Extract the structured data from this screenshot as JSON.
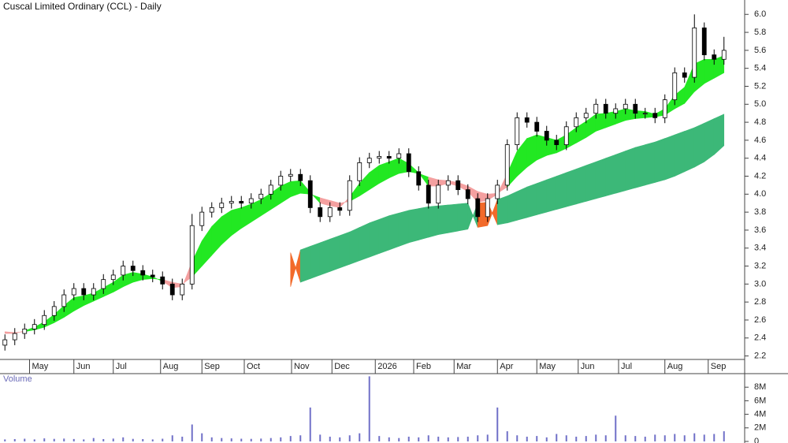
{
  "chart_data": [
    {
      "type": "candlestick",
      "title": "Cuscal Limited Ordinary (CCL) - Daily",
      "xlim": [
        -0.5,
        75.1
      ],
      "xticks": [
        {
          "value": 2.5,
          "label": "May"
        },
        {
          "value": 7.0,
          "label": "Jun"
        },
        {
          "value": 11.0,
          "label": "Jul"
        },
        {
          "value": 15.8,
          "label": "Aug"
        },
        {
          "value": 20.0,
          "label": "Sep"
        },
        {
          "value": 24.3,
          "label": "Oct"
        },
        {
          "value": 29.1,
          "label": "Nov"
        },
        {
          "value": 33.2,
          "label": "Dec"
        },
        {
          "value": 37.6,
          "label": "2026"
        },
        {
          "value": 41.5,
          "label": "Feb"
        },
        {
          "value": 45.6,
          "label": "Mar"
        },
        {
          "value": 50.0,
          "label": "Apr"
        },
        {
          "value": 54.0,
          "label": "May"
        },
        {
          "value": 58.2,
          "label": "Jun"
        },
        {
          "value": 62.3,
          "label": "Jul"
        },
        {
          "value": 67.0,
          "label": "Aug"
        },
        {
          "value": 71.4,
          "label": "Sep"
        }
      ],
      "ylim": [
        2.17,
        6.16
      ],
      "yticks": [
        2.2,
        2.4,
        2.6,
        2.8,
        {
          "value": 3.0,
          "label": "3.0"
        },
        3.2,
        3.4,
        3.6,
        3.8,
        {
          "value": 4.0,
          "label": "4.0"
        },
        4.2,
        4.4,
        4.6,
        4.8,
        {
          "value": 5.0,
          "label": "5.0"
        },
        5.2,
        5.4,
        5.6,
        5.8,
        {
          "value": 6.0,
          "label": "6.0"
        }
      ],
      "open": [
        2.32,
        2.38,
        2.45,
        2.5,
        2.55,
        2.65,
        2.75,
        2.88,
        2.95,
        2.88,
        2.95,
        3.05,
        3.1,
        3.2,
        3.15,
        3.1,
        3.08,
        3.0,
        2.88,
        3.0,
        3.65,
        3.8,
        3.85,
        3.9,
        3.92,
        3.9,
        3.95,
        4.0,
        4.1,
        4.2,
        4.22,
        4.15,
        3.85,
        3.75,
        3.85,
        3.82,
        4.15,
        4.35,
        4.4,
        4.42,
        4.4,
        4.45,
        4.25,
        4.1,
        3.9,
        4.1,
        4.15,
        4.05,
        3.95,
        3.75,
        3.95,
        4.1,
        4.55,
        4.85,
        4.8,
        4.7,
        4.6,
        4.55,
        4.75,
        4.85,
        4.9,
        5.0,
        4.9,
        4.95,
        5.0,
        4.9,
        4.9,
        4.85,
        5.05,
        5.35,
        5.3,
        5.85,
        5.55,
        5.5
      ],
      "high": [
        2.44,
        2.51,
        2.56,
        2.61,
        2.71,
        2.81,
        2.94,
        3.01,
        3.01,
        3.01,
        3.11,
        3.16,
        3.26,
        3.26,
        3.21,
        3.16,
        3.14,
        3.06,
        3.06,
        3.78,
        3.86,
        3.91,
        3.96,
        3.98,
        3.98,
        4.01,
        4.06,
        4.16,
        4.26,
        4.28,
        4.28,
        4.21,
        3.91,
        3.91,
        3.91,
        4.21,
        4.41,
        4.46,
        4.48,
        4.48,
        4.51,
        4.51,
        4.31,
        4.16,
        4.16,
        4.21,
        4.21,
        4.11,
        4.01,
        4.01,
        4.16,
        4.61,
        4.91,
        4.91,
        4.86,
        4.76,
        4.66,
        4.81,
        4.91,
        4.96,
        5.06,
        5.06,
        5.01,
        5.06,
        5.06,
        4.96,
        4.96,
        5.11,
        5.41,
        5.41,
        6.0,
        5.91,
        5.61,
        5.75
      ],
      "low": [
        2.26,
        2.32,
        2.39,
        2.44,
        2.49,
        2.59,
        2.69,
        2.82,
        2.82,
        2.82,
        2.89,
        2.99,
        3.04,
        3.09,
        3.04,
        3.02,
        2.94,
        2.82,
        2.82,
        2.94,
        3.59,
        3.74,
        3.79,
        3.84,
        3.84,
        3.84,
        3.89,
        3.94,
        4.04,
        4.14,
        4.09,
        3.79,
        3.69,
        3.69,
        3.76,
        3.76,
        4.09,
        4.29,
        4.34,
        4.34,
        4.34,
        4.19,
        4.04,
        3.84,
        3.84,
        4.04,
        3.99,
        3.89,
        3.69,
        3.69,
        3.89,
        4.04,
        4.49,
        4.74,
        4.64,
        4.54,
        4.49,
        4.49,
        4.69,
        4.79,
        4.84,
        4.84,
        4.84,
        4.89,
        4.84,
        4.84,
        4.79,
        4.79,
        4.99,
        5.24,
        5.24,
        5.49,
        5.44,
        5.44
      ],
      "close": [
        2.38,
        2.45,
        2.5,
        2.55,
        2.65,
        2.75,
        2.88,
        2.95,
        2.88,
        2.95,
        3.05,
        3.1,
        3.2,
        3.15,
        3.1,
        3.08,
        3.0,
        2.88,
        3.0,
        3.65,
        3.8,
        3.85,
        3.9,
        3.92,
        3.9,
        3.95,
        4.0,
        4.1,
        4.2,
        4.22,
        4.15,
        3.85,
        3.75,
        3.85,
        3.82,
        4.15,
        4.35,
        4.4,
        4.42,
        4.4,
        4.45,
        4.25,
        4.1,
        3.9,
        4.1,
        4.15,
        4.05,
        3.95,
        3.75,
        3.95,
        4.1,
        4.55,
        4.85,
        4.8,
        4.7,
        4.6,
        4.55,
        4.75,
        4.85,
        4.9,
        5.0,
        4.9,
        4.95,
        5.0,
        4.9,
        4.9,
        4.85,
        5.05,
        5.35,
        5.3,
        5.85,
        5.55,
        5.5,
        5.6
      ],
      "up_color": "#ffffff",
      "down_color": "#000000",
      "bands": [
        {
          "up_color": "#22e822",
          "down_color": "#f4a0a0",
          "fast": [
            2.45,
            2.45,
            2.48,
            2.52,
            2.58,
            2.66,
            2.76,
            2.85,
            2.87,
            2.9,
            2.96,
            3.02,
            3.1,
            3.13,
            3.11,
            3.08,
            3.03,
            2.96,
            2.97,
            3.25,
            3.48,
            3.64,
            3.75,
            3.82,
            3.85,
            3.89,
            3.94,
            4.01,
            4.09,
            4.14,
            4.15,
            4.02,
            3.9,
            3.87,
            3.85,
            3.97,
            4.12,
            4.24,
            4.32,
            4.36,
            4.4,
            4.34,
            4.24,
            4.09,
            4.09,
            4.12,
            4.09,
            4.03,
            3.91,
            3.93,
            4.0,
            4.23,
            4.48,
            4.62,
            4.66,
            4.63,
            4.6,
            4.66,
            4.74,
            4.81,
            4.89,
            4.9,
            4.92,
            4.95,
            4.93,
            4.92,
            4.89,
            4.95,
            5.1,
            5.19,
            5.45,
            5.5,
            5.5,
            5.54
          ],
          "slow": [
            2.47,
            2.46,
            2.47,
            2.49,
            2.52,
            2.57,
            2.63,
            2.7,
            2.76,
            2.81,
            2.86,
            2.91,
            2.97,
            3.02,
            3.05,
            3.06,
            3.05,
            3.02,
            3.0,
            3.08,
            3.2,
            3.32,
            3.44,
            3.54,
            3.62,
            3.69,
            3.76,
            3.83,
            3.9,
            3.97,
            4.01,
            4.0,
            3.96,
            3.93,
            3.9,
            3.92,
            3.98,
            4.05,
            4.12,
            4.18,
            4.23,
            4.25,
            4.23,
            4.19,
            4.16,
            4.15,
            4.13,
            4.09,
            4.03,
            4.0,
            4.01,
            4.08,
            4.2,
            4.3,
            4.38,
            4.43,
            4.46,
            4.51,
            4.57,
            4.63,
            4.7,
            4.74,
            4.78,
            4.82,
            4.84,
            4.85,
            4.86,
            4.88,
            4.95,
            5.01,
            5.14,
            5.23,
            5.29,
            5.35
          ]
        },
        {
          "up_color": "#3cb878",
          "down_color": "#f26a2a",
          "fast": [
            null,
            null,
            null,
            null,
            null,
            null,
            null,
            null,
            null,
            null,
            null,
            null,
            null,
            null,
            null,
            null,
            null,
            null,
            null,
            null,
            null,
            null,
            null,
            null,
            null,
            null,
            null,
            null,
            null,
            2.97,
            3.38,
            3.42,
            3.46,
            3.5,
            3.54,
            3.58,
            3.63,
            3.68,
            3.72,
            3.76,
            3.79,
            3.82,
            3.84,
            3.86,
            3.87,
            3.88,
            3.89,
            3.9,
            3.63,
            3.65,
            3.94,
            3.98,
            4.03,
            4.08,
            4.12,
            4.16,
            4.2,
            4.24,
            4.28,
            4.32,
            4.36,
            4.4,
            4.44,
            4.48,
            4.52,
            4.55,
            4.58,
            4.62,
            4.66,
            4.7,
            4.74,
            4.79,
            4.84,
            4.89
          ],
          "slow": [
            null,
            null,
            null,
            null,
            null,
            null,
            null,
            null,
            null,
            null,
            null,
            null,
            null,
            null,
            null,
            null,
            null,
            null,
            null,
            null,
            null,
            null,
            null,
            null,
            null,
            null,
            null,
            null,
            null,
            3.35,
            3.02,
            3.06,
            3.1,
            3.14,
            3.18,
            3.22,
            3.26,
            3.3,
            3.34,
            3.38,
            3.42,
            3.46,
            3.49,
            3.52,
            3.55,
            3.57,
            3.59,
            3.61,
            3.9,
            3.91,
            3.66,
            3.68,
            3.71,
            3.74,
            3.77,
            3.8,
            3.83,
            3.86,
            3.89,
            3.92,
            3.95,
            3.98,
            4.01,
            4.04,
            4.07,
            4.1,
            4.13,
            4.16,
            4.2,
            4.25,
            4.3,
            4.36,
            4.44,
            4.54
          ]
        }
      ]
    },
    {
      "type": "bar",
      "title": "Volume",
      "color": "#7070c8",
      "xlim": [
        -0.5,
        75.1
      ],
      "ylim": [
        0,
        10000000
      ],
      "yticks": [
        {
          "value": 0,
          "label": "0"
        },
        {
          "value": 2000000,
          "label": "2M"
        },
        {
          "value": 4000000,
          "label": "4M"
        },
        {
          "value": 6000000,
          "label": "6M"
        },
        {
          "value": 8000000,
          "label": "8M"
        }
      ],
      "values": [
        300000,
        350000,
        400000,
        300000,
        450000,
        380000,
        420000,
        360000,
        300000,
        500000,
        350000,
        420000,
        600000,
        380000,
        350000,
        300000,
        400000,
        900000,
        700000,
        2500000,
        1200000,
        600000,
        500000,
        450000,
        400000,
        380000,
        420000,
        500000,
        600000,
        800000,
        900000,
        5000000,
        1000000,
        700000,
        600000,
        900000,
        1200000,
        9600000,
        800000,
        600000,
        500000,
        700000,
        600000,
        900000,
        700000,
        600000,
        650000,
        700000,
        900000,
        1000000,
        5000000,
        1500000,
        900000,
        700000,
        800000,
        600000,
        1100000,
        900000,
        700000,
        800000,
        1000000,
        900000,
        3800000,
        900000,
        800000,
        700000,
        1000000,
        900000,
        1100000,
        900000,
        1200000,
        1000000,
        1100000,
        1500000
      ]
    }
  ]
}
